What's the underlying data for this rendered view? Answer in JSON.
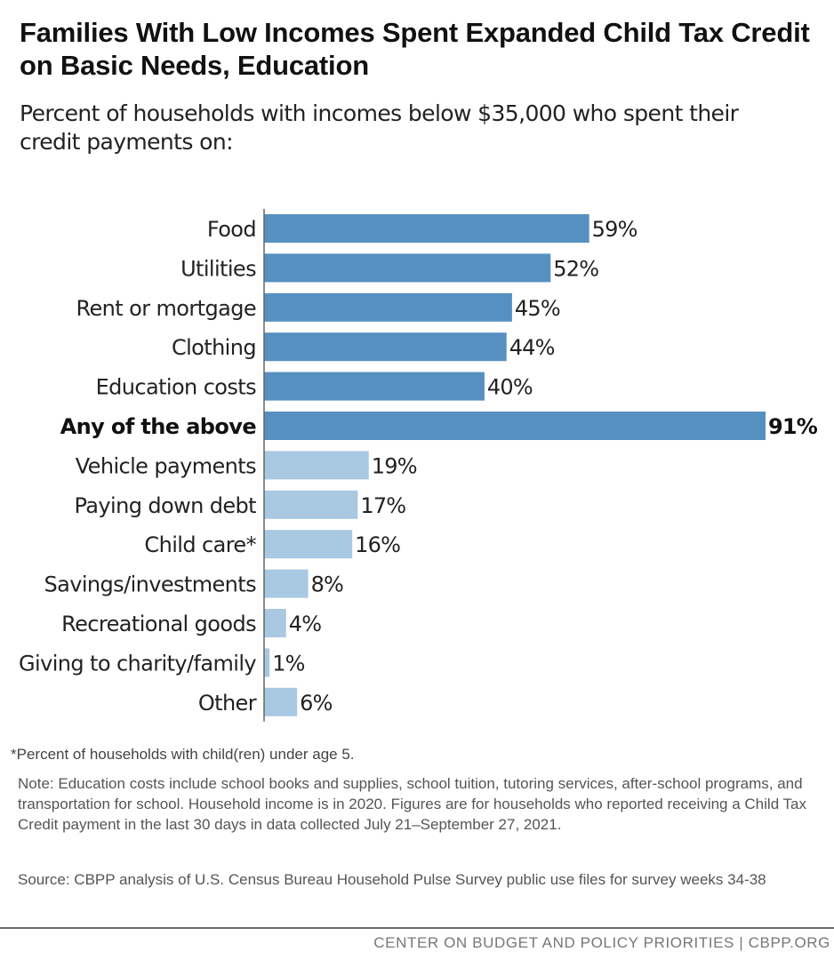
{
  "title": "Families With Low Incomes Spent Expanded Child Tax Credit on Basic Needs, Education",
  "subtitle": "Percent of households with incomes below $35,000 who spent their credit payments on:",
  "chart_data": {
    "type": "bar",
    "orientation": "horizontal",
    "categories": [
      "Food",
      "Utilities",
      "Rent or mortgage",
      "Clothing",
      "Education costs",
      "Any of the above",
      "Vehicle payments",
      "Paying down debt",
      "Child care*",
      "Savings/investments",
      "Recreational goods",
      "Giving to charity/family",
      "Other"
    ],
    "values": [
      59,
      52,
      45,
      44,
      40,
      91,
      19,
      17,
      16,
      8,
      4,
      1,
      6
    ],
    "value_labels": [
      "59%",
      "52%",
      "45%",
      "44%",
      "40%",
      "91%",
      "19%",
      "17%",
      "16%",
      "8%",
      "4%",
      "1%",
      "6%"
    ],
    "highlighted_category": "Any of the above",
    "xlim": [
      0,
      91
    ],
    "grid": false,
    "colors": {
      "basic_needs": "#5590c1",
      "other_uses": "#a9c8e2"
    },
    "bar_groups": [
      "basic_needs",
      "basic_needs",
      "basic_needs",
      "basic_needs",
      "basic_needs",
      "basic_needs",
      "other_uses",
      "other_uses",
      "other_uses",
      "other_uses",
      "other_uses",
      "other_uses",
      "other_uses"
    ]
  },
  "footnote": "*Percent of households with child(ren) under age 5.",
  "note": "Note: Education costs include school books and supplies, school tuition, tutoring services, after-school programs, and transportation for school. Household income is in 2020. Figures are for households who reported receiving a Child Tax Credit payment in the last 30 days in data collected July 21–September 27, 2021.",
  "source": "Source: CBPP analysis of U.S. Census Bureau Household Pulse Survey public use files for survey weeks 34-38",
  "credit": "CENTER ON BUDGET AND POLICY PRIORITIES | CBPP.ORG"
}
